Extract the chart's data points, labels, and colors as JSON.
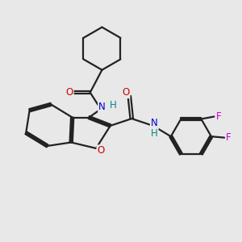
{
  "bg_color": "#e8e8e8",
  "bond_color": "#222222",
  "O_color": "#cc0000",
  "N_color": "#0000cc",
  "F_color": "#cc00cc",
  "H_color": "#008888",
  "line_width": 1.6,
  "figsize": [
    3.0,
    3.0
  ],
  "dpi": 100,
  "xlim": [
    0,
    10
  ],
  "ylim": [
    0,
    10
  ],
  "font_size": 8.5
}
